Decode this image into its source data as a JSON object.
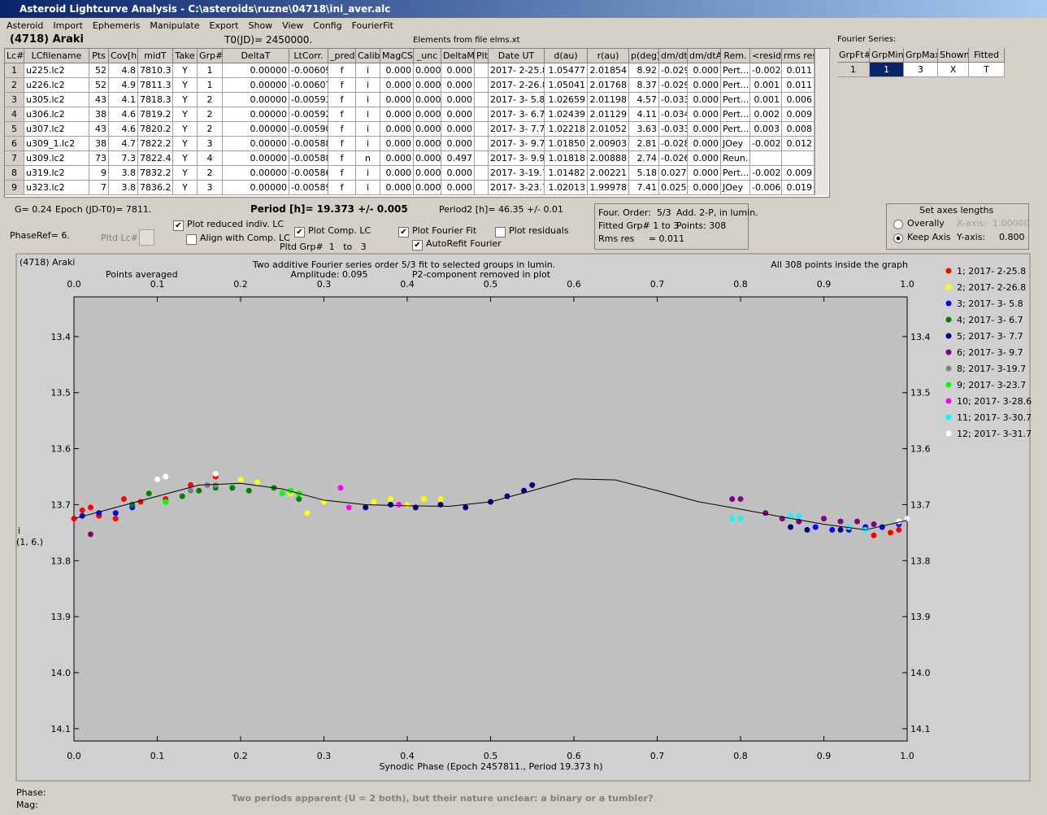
{
  "window": {
    "title": "Asteroid Lightcurve Analysis - C:\\asteroids\\ruzne\\04718\\ini_aver.alc",
    "menu": [
      "Asteroid",
      "Import",
      "Ephemeris",
      "Manipulate",
      "Export",
      "Show",
      "View",
      "Config",
      "FourierFit"
    ]
  },
  "header": {
    "asteroid": "(4718) Araki",
    "t0": "T0(JD)= 2450000.",
    "elements": "Elements from file elms.xt",
    "fourier_label": "Fourier Series:"
  },
  "table": {
    "columns": [
      "Lc#",
      "LCfilename",
      "Pts",
      "Cov[h]",
      "midT",
      "Take",
      "Grp#",
      "DeltaT",
      "LtCorr.",
      "_pred",
      "Calib",
      "MagCS",
      "_unc",
      "DeltaM",
      "Plt",
      "Date UT",
      "d(au)",
      "r(au)",
      "p(deg)",
      "dm/dt",
      "dm/dtA",
      "Rem.",
      "<resid>",
      "rms res"
    ],
    "rows": [
      [
        "1",
        "u225.lc2",
        "52",
        "4.8",
        "7810.3",
        "Y",
        "1",
        "0.00000",
        "-0.00609",
        "f",
        "i",
        "0.000",
        "0.000",
        "0.000",
        "2017- 2-25.8",
        "1.05477",
        "2.01854",
        "8.92",
        "-0.029",
        "0.000",
        "Pert...",
        "-0.002",
        "0.011"
      ],
      [
        "2",
        "u226.lc2",
        "52",
        "4.9",
        "7811.3",
        "Y",
        "1",
        "0.00000",
        "-0.00607",
        "f",
        "i",
        "0.000",
        "0.000",
        "0.000",
        "2017- 2-26.8",
        "1.05041",
        "2.01768",
        "8.37",
        "-0.029",
        "0.000",
        "Pert...",
        "0.001",
        "0.011"
      ],
      [
        "3",
        "u305.lc2",
        "43",
        "4.1",
        "7818.3",
        "Y",
        "2",
        "0.00000",
        "-0.00593",
        "f",
        "i",
        "0.000",
        "0.000",
        "0.000",
        "2017- 3- 5.8",
        "1.02659",
        "2.01198",
        "4.57",
        "-0.033",
        "0.000",
        "Pert...",
        "0.001",
        "0.006"
      ],
      [
        "4",
        "u306.lc2",
        "38",
        "4.6",
        "7819.2",
        "Y",
        "2",
        "0.00000",
        "-0.00592",
        "f",
        "i",
        "0.000",
        "0.000",
        "0.000",
        "2017- 3- 6.7",
        "1.02439",
        "2.01129",
        "4.11",
        "-0.034",
        "0.000",
        "Pert...",
        "0.002",
        "0.009"
      ],
      [
        "5",
        "u307.lc2",
        "43",
        "4.6",
        "7820.2",
        "Y",
        "2",
        "0.00000",
        "-0.00590",
        "f",
        "i",
        "0.000",
        "0.000",
        "0.000",
        "2017- 3- 7.7",
        "1.02218",
        "2.01052",
        "3.63",
        "-0.033",
        "0.000",
        "Pert...",
        "0.003",
        "0.008"
      ],
      [
        "6",
        "u309_1.lc2",
        "38",
        "4.7",
        "7822.2",
        "Y",
        "3",
        "0.00000",
        "-0.00588",
        "f",
        "i",
        "0.000",
        "0.000",
        "0.000",
        "2017- 3- 9.7",
        "1.01850",
        "2.00903",
        "2.81",
        "-0.028",
        "0.000",
        "JOey",
        "-0.002",
        "0.012"
      ],
      [
        "7",
        "u309.lc2",
        "73",
        "7.3",
        "7822.4",
        "Y",
        "4",
        "0.00000",
        "-0.00588",
        "f",
        "n",
        "0.000",
        "0.000",
        "0.497",
        "2017- 3- 9.9",
        "1.01818",
        "2.00888",
        "2.74",
        "-0.026",
        "0.000",
        "Reun.."
      ],
      [
        "8",
        "u319.lc2",
        "9",
        "3.8",
        "7832.2",
        "Y",
        "2",
        "0.00000",
        "-0.00586",
        "f",
        "i",
        "0.000",
        "0.000",
        "0.000",
        "2017- 3-19.7",
        "1.01482",
        "2.00221",
        "5.18",
        "0.027",
        "0.000",
        "Pert...",
        "-0.002",
        "0.009"
      ],
      [
        "9",
        "u323.lc2",
        "7",
        "3.8",
        "7836.2",
        "Y",
        "3",
        "0.00000",
        "-0.00589",
        "f",
        "i",
        "0.000",
        "0.000",
        "0.000",
        "2017- 3-23.7",
        "1.02013",
        "1.99978",
        "7.41",
        "0.025",
        "0.000",
        "JOey",
        "-0.006",
        "0.019"
      ]
    ]
  },
  "fourier_table": {
    "columns": [
      "GrpFt#",
      "GrpMin",
      "GrpMax",
      "Shown",
      "Fitted"
    ],
    "rows": [
      [
        "1",
        "1",
        "3",
        "X",
        "T"
      ]
    ]
  },
  "info": {
    "g": "G= 0.24",
    "epoch": "Epoch (JD-T0)= 7811.",
    "period": "Period [h]= 19.373 +/- 0.005",
    "period2": "Period2 [h]= 46.35 +/- 0.01",
    "phaseref": "PhaseRef= 6.",
    "pltd_lc": "Pltd Lc#:",
    "pltd_grp": "Pltd Grp#  1   to   3"
  },
  "checkboxes": [
    {
      "label": "Plot reduced indiv. LC",
      "checked": true
    },
    {
      "label": "Align with Comp. LC",
      "checked": false
    },
    {
      "label": "Plot Comp. LC",
      "checked": true
    },
    {
      "label": "Plot Fourier Fit",
      "checked": true
    },
    {
      "label": "Plot residuals",
      "checked": false
    },
    {
      "label": "AutoRefit Fourier",
      "checked": true
    }
  ],
  "summary": [
    "Four. Order:  5/3",
    "Add. 2-P, in lumin.",
    "Fitted Grp# 1 to 3",
    "Points: 308",
    "Rms res     = 0.011"
  ],
  "axes_box": {
    "title": "Set axes lengths",
    "options": [
      {
        "label": "Overally",
        "selected": false
      },
      {
        "label": "Keep Axis",
        "selected": true
      }
    ],
    "x_axis": "X-axis:",
    "x_value": "1.00000",
    "y_axis": "Y-axis:",
    "y_value": "0.800"
  },
  "chart_data": {
    "type": "scatter",
    "title": "(4718) Araki",
    "annotations": [
      "Points averaged",
      "Two additive Fourier series order 5/3 fit to selected groups in lumin.",
      "Amplitude: 0.095",
      "P2-component removed in plot",
      "All 308 points inside the graph"
    ],
    "xlabel": "Synodic Phase (Epoch 2457811., Period 19.373 h)",
    "ylabel": "i",
    "ylabel_note": "(1, 6.)",
    "xlim": [
      0,
      1
    ],
    "ylim": [
      13.329,
      14.122
    ],
    "invert_y": true,
    "xticks": [
      {
        "value": 0,
        "label": "0.0"
      },
      0.1,
      0.2,
      0.3,
      0.4,
      0.5,
      0.6,
      0.7,
      0.8,
      0.9,
      {
        "value": 1,
        "label": "1.0"
      }
    ],
    "yticks": [
      13.4,
      13.5,
      13.6,
      13.7,
      13.8,
      13.9,
      {
        "value": 14,
        "label": "14.0"
      },
      14.1
    ],
    "series": [
      {
        "name": "1; 2017- 2-25.8",
        "color": "#ff0000",
        "x": [
          0.0,
          0.01,
          0.02,
          0.03,
          0.05,
          0.06,
          0.08,
          0.11,
          0.14,
          0.17,
          0.96,
          0.98,
          0.99
        ],
        "values": [
          13.725,
          13.71,
          13.705,
          13.72,
          13.725,
          13.69,
          13.695,
          13.69,
          13.665,
          13.65,
          13.755,
          13.75,
          13.745
        ]
      },
      {
        "name": "2; 2017- 2-26.8",
        "color": "#ffff00",
        "x": [
          0.2,
          0.22,
          0.26,
          0.28,
          0.3,
          0.33,
          0.36,
          0.38,
          0.4,
          0.42,
          0.44
        ],
        "values": [
          13.655,
          13.66,
          13.68,
          13.715,
          13.695,
          13.705,
          13.695,
          13.69,
          13.7,
          13.69,
          13.69
        ]
      },
      {
        "name": "3; 2017- 3- 5.8",
        "color": "#0000ff",
        "x": [
          0.01,
          0.03,
          0.05,
          0.07,
          0.89,
          0.91,
          0.93,
          0.95,
          0.97,
          0.99,
          1.0
        ],
        "values": [
          13.72,
          13.715,
          13.715,
          13.705,
          13.74,
          13.745,
          13.745,
          13.74,
          13.74,
          13.735,
          13.725
        ]
      },
      {
        "name": "4; 2017- 3- 6.7",
        "color": "#008000",
        "x": [
          0.07,
          0.09,
          0.11,
          0.13,
          0.15,
          0.17,
          0.19,
          0.21,
          0.24,
          0.25,
          0.27
        ],
        "values": [
          13.7,
          13.68,
          13.695,
          13.685,
          13.675,
          13.67,
          13.67,
          13.675,
          13.67,
          13.68,
          13.69
        ]
      },
      {
        "name": "5; 2017- 3- 7.7",
        "color": "#000080",
        "x": [
          0.35,
          0.38,
          0.41,
          0.44,
          0.47,
          0.5,
          0.52,
          0.54,
          0.55,
          0.86,
          0.88,
          0.92
        ],
        "values": [
          13.705,
          13.7,
          13.705,
          13.7,
          13.705,
          13.695,
          13.685,
          13.675,
          13.665,
          13.74,
          13.745,
          13.745
        ]
      },
      {
        "name": "6; 2017- 3- 9.7",
        "color": "#800080",
        "x": [
          0.02,
          0.79,
          0.8,
          0.83,
          0.85,
          0.87,
          0.9,
          0.92,
          0.94,
          0.96
        ],
        "values": [
          13.753,
          13.69,
          13.69,
          13.715,
          13.725,
          13.73,
          13.725,
          13.73,
          13.73,
          13.735
        ]
      },
      {
        "name": "8; 2017- 3-19.7",
        "color": "#808080",
        "x": [
          0.14,
          0.16,
          0.17
        ],
        "values": [
          13.675,
          13.665,
          13.665
        ]
      },
      {
        "name": "9; 2017- 3-23.7",
        "color": "#00ff00",
        "x": [
          0.11,
          0.25,
          0.26,
          0.27
        ],
        "values": [
          13.695,
          13.68,
          13.675,
          13.68
        ]
      },
      {
        "name": "10; 2017- 3-28.6",
        "color": "#ff00ff",
        "x": [
          0.32,
          0.33,
          0.39
        ],
        "values": [
          13.67,
          13.705,
          13.7
        ]
      },
      {
        "name": "11; 2017- 3-30.7",
        "color": "#00ffff",
        "x": [
          0.79,
          0.8,
          0.86,
          0.87,
          0.93,
          0.95
        ],
        "values": [
          13.725,
          13.725,
          13.72,
          13.72,
          13.74,
          13.745
        ]
      },
      {
        "name": "12; 2017- 3-31.7",
        "color": "#ffffff",
        "x": [
          0.1,
          0.11,
          0.17,
          0.99,
          1.0
        ],
        "values": [
          13.655,
          13.65,
          13.645,
          13.73,
          13.725
        ]
      }
    ],
    "fit": {
      "color": "#000000",
      "x": [
        0,
        0.05,
        0.1,
        0.15,
        0.2,
        0.25,
        0.3,
        0.35,
        0.4,
        0.45,
        0.5,
        0.55,
        0.6,
        0.65,
        0.7,
        0.75,
        0.8,
        0.85,
        0.9,
        0.95,
        1.0
      ],
      "values": [
        13.725,
        13.705,
        13.685,
        13.665,
        13.662,
        13.672,
        13.692,
        13.7,
        13.702,
        13.703,
        13.695,
        13.675,
        13.654,
        13.656,
        13.675,
        13.695,
        13.708,
        13.722,
        13.735,
        13.745,
        13.728
      ]
    }
  },
  "footer": {
    "phase": "Phase:",
    "mag": "Mag:",
    "note": "Two periods apparent (U = 2 both), but their nature unclear: a binary or a tumbler?"
  }
}
